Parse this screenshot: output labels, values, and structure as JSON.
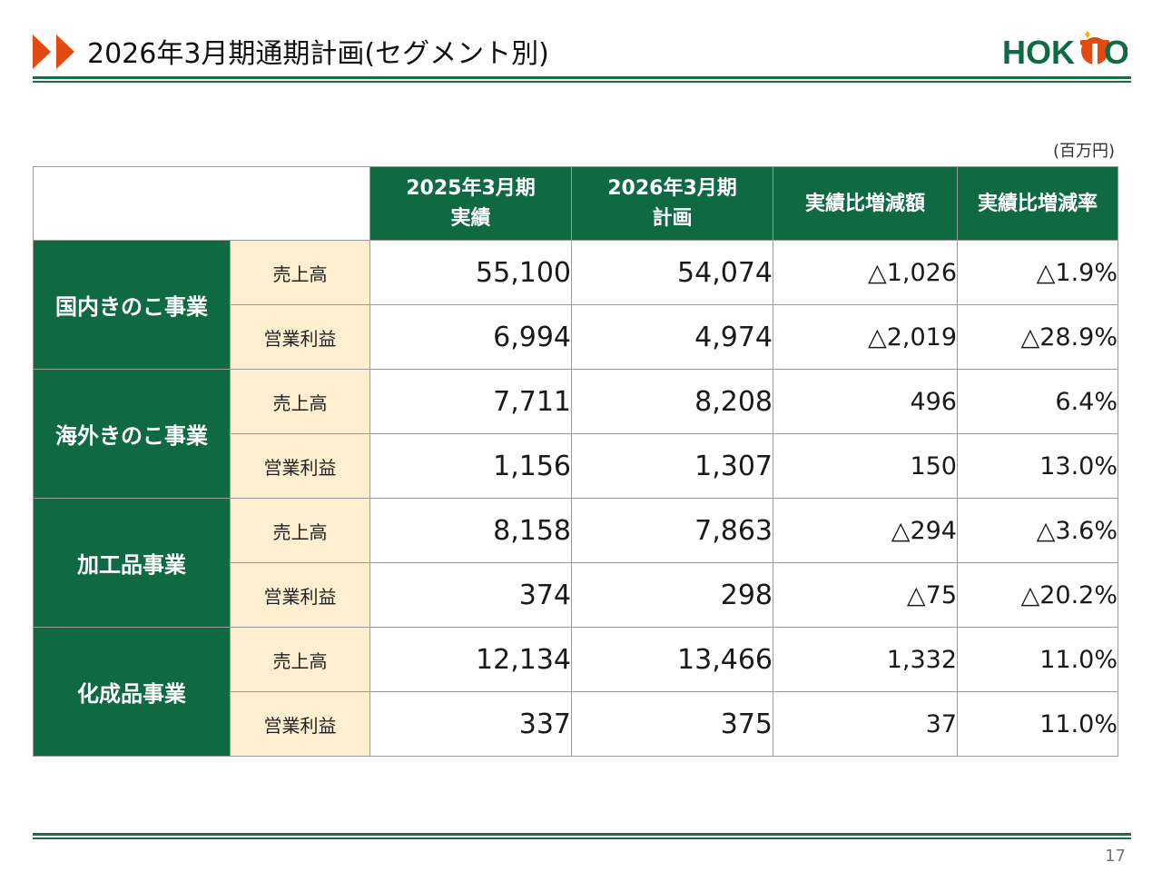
{
  "header": {
    "title": "2026年3月期通期計画(セグメント別)",
    "logo_text": "HOKTO",
    "brand_color": "#0f6a42",
    "arrow_color": "#e34a12"
  },
  "unit_label": "(百万円)",
  "table": {
    "columns": [
      "2025年3月期\n実績",
      "2026年3月期\n計画",
      "実績比増減額",
      "実績比増減率"
    ],
    "col1_line1": "2025年3月期",
    "col1_line2": "実績",
    "col2_line1": "2026年3月期",
    "col2_line2": "計画",
    "col3": "実績比増減額",
    "col4": "実績比増減率",
    "segments": [
      {
        "name": "国内きのこ事業",
        "rows": [
          {
            "metric": "売上高",
            "actual_2025": "55,100",
            "plan_2026": "54,074",
            "diff": "△1,026",
            "rate": "△1.9%"
          },
          {
            "metric": "営業利益",
            "actual_2025": "6,994",
            "plan_2026": "4,974",
            "diff": "△2,019",
            "rate": "△28.9%"
          }
        ]
      },
      {
        "name": "海外きのこ事業",
        "rows": [
          {
            "metric": "売上高",
            "actual_2025": "7,711",
            "plan_2026": "8,208",
            "diff": "496",
            "rate": "6.4%"
          },
          {
            "metric": "営業利益",
            "actual_2025": "1,156",
            "plan_2026": "1,307",
            "diff": "150",
            "rate": "13.0%"
          }
        ]
      },
      {
        "name": "加工品事業",
        "rows": [
          {
            "metric": "売上高",
            "actual_2025": "8,158",
            "plan_2026": "7,863",
            "diff": "△294",
            "rate": "△3.6%"
          },
          {
            "metric": "営業利益",
            "actual_2025": "374",
            "plan_2026": "298",
            "diff": "△75",
            "rate": "△20.2%"
          }
        ]
      },
      {
        "name": "化成品事業",
        "rows": [
          {
            "metric": "売上高",
            "actual_2025": "12,134",
            "plan_2026": "13,466",
            "diff": "1,332",
            "rate": "11.0%"
          },
          {
            "metric": "営業利益",
            "actual_2025": "337",
            "plan_2026": "375",
            "diff": "37",
            "rate": "11.0%"
          }
        ]
      }
    ]
  },
  "page_number": "17"
}
